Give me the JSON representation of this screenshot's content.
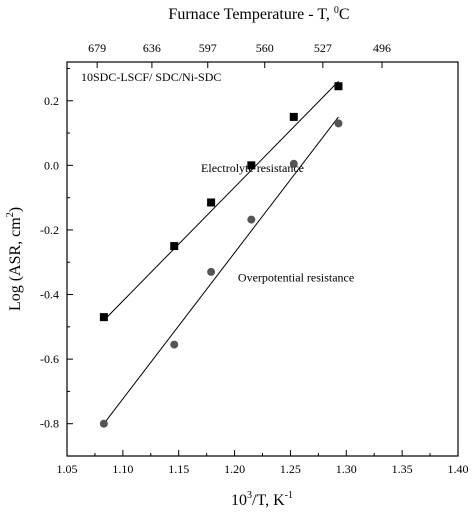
{
  "chart_data": {
    "type": "scatter",
    "top_title": "Furnace Temperature - T, ",
    "top_title_sup": "0",
    "top_title_end": "C",
    "annotation": "10SDC-LSCF/ SDC/Ni-SDC",
    "xlabel_base": "10",
    "xlabel_sup": "3",
    "xlabel_mid": "/T, K",
    "xlabel_sup2": "-1",
    "ylabel_start": "Log (ASR,   cm",
    "ylabel_sup": "2",
    "ylabel_end": ")",
    "xlim": [
      1.05,
      1.4
    ],
    "ylim": [
      -0.9,
      0.32
    ],
    "x_ticks": [
      {
        "value": 1.05,
        "label": "1.05"
      },
      {
        "value": 1.1,
        "label": "1.10"
      },
      {
        "value": 1.15,
        "label": "1.15"
      },
      {
        "value": 1.2,
        "label": "1.20"
      },
      {
        "value": 1.25,
        "label": "1.25"
      },
      {
        "value": 1.3,
        "label": "1.30"
      },
      {
        "value": 1.35,
        "label": "1.35"
      },
      {
        "value": 1.4,
        "label": "1.40"
      }
    ],
    "y_ticks": [
      {
        "value": -0.8,
        "label": "-0.8"
      },
      {
        "value": -0.6,
        "label": "-0.6"
      },
      {
        "value": -0.4,
        "label": "-0.4"
      },
      {
        "value": -0.2,
        "label": "-0.2"
      },
      {
        "value": 0.0,
        "label": "0.0"
      },
      {
        "value": 0.2,
        "label": "0.2"
      }
    ],
    "top_ticks": [
      {
        "value": 1.077,
        "label": "679"
      },
      {
        "value": 1.126,
        "label": "636"
      },
      {
        "value": 1.176,
        "label": "597"
      },
      {
        "value": 1.227,
        "label": "560"
      },
      {
        "value": 1.279,
        "label": "527"
      },
      {
        "value": 1.332,
        "label": "496"
      }
    ],
    "series": [
      {
        "name": "Electrolyte resistance",
        "marker": "square",
        "x": [
          1.083,
          1.146,
          1.179,
          1.215,
          1.253,
          1.293
        ],
        "y": [
          -0.47,
          -0.25,
          -0.115,
          0.0,
          0.15,
          0.245
        ],
        "fit": {
          "x": [
            1.083,
            1.293
          ],
          "y": [
            -0.48,
            0.26
          ]
        },
        "label_at": {
          "x": 1.17,
          "y": -0.02
        }
      },
      {
        "name": "Overpotential resistance",
        "marker": "circle",
        "x": [
          1.083,
          1.146,
          1.179,
          1.215,
          1.253,
          1.293
        ],
        "y": [
          -0.8,
          -0.555,
          -0.33,
          -0.168,
          0.005,
          0.13
        ],
        "fit": {
          "x": [
            1.083,
            1.293
          ],
          "y": [
            -0.8,
            0.15
          ]
        },
        "label_at": {
          "x": 1.203,
          "y": -0.36
        }
      }
    ]
  }
}
